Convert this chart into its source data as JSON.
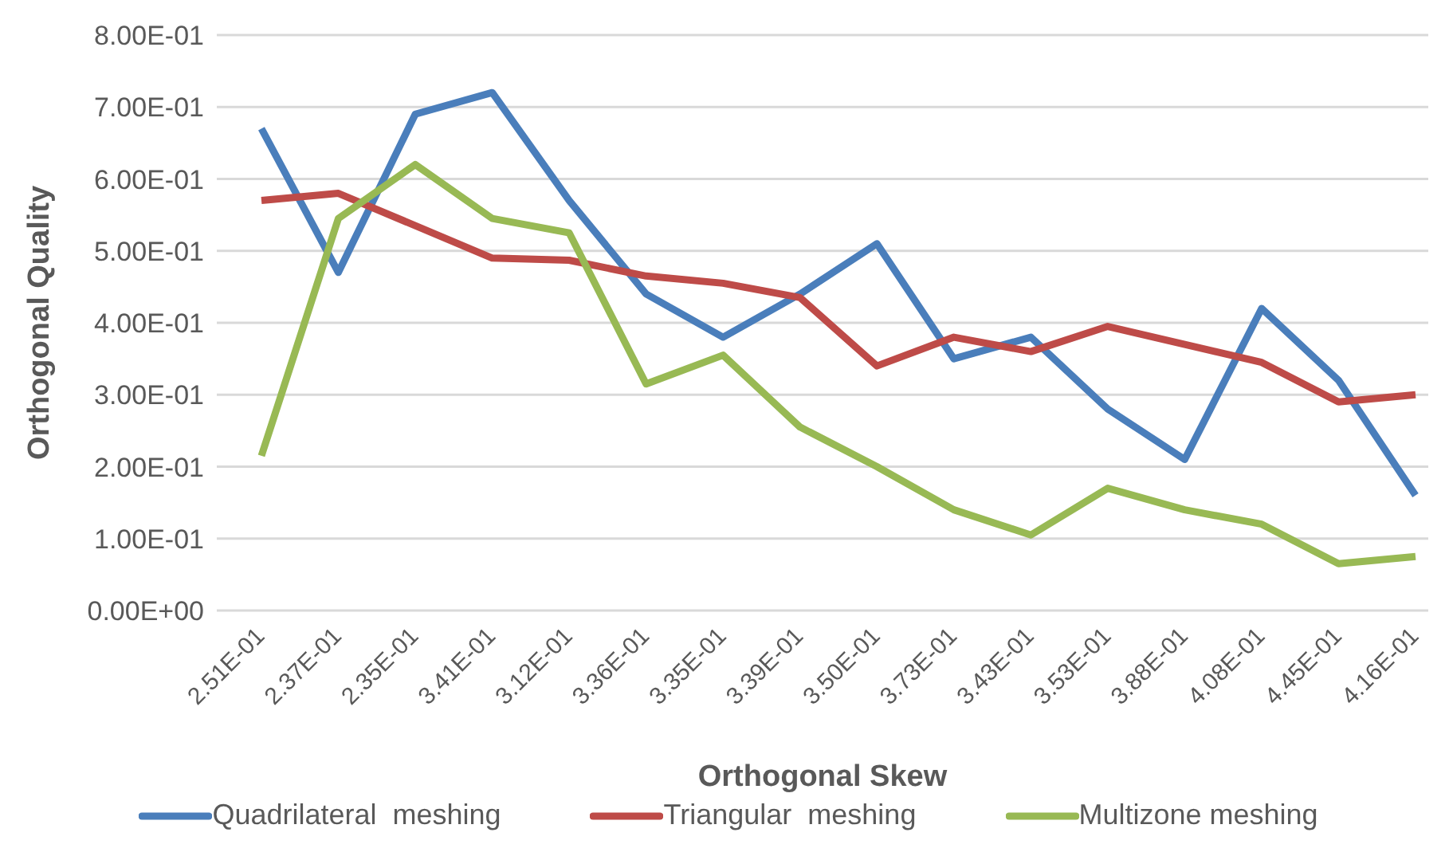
{
  "chart_data": {
    "type": "line",
    "xlabel": "Orthogonal Skew",
    "ylabel": "Orthogonal Quality",
    "categories": [
      "2.51E-01",
      "2.37E-01",
      "2.35E-01",
      "3.41E-01",
      "3.12E-01",
      "3.36E-01",
      "3.35E-01",
      "3.39E-01",
      "3.50E-01",
      "3.73E-01",
      "3.43E-01",
      "3.53E-01",
      "3.88E-01",
      "4.08E-01",
      "4.45E-01",
      "4.16E-01"
    ],
    "series": [
      {
        "name": "Quadrilateral  meshing",
        "color": "#4a7ebb",
        "values": [
          0.67,
          0.47,
          0.69,
          0.72,
          0.57,
          0.44,
          0.38,
          0.44,
          0.51,
          0.35,
          0.38,
          0.28,
          0.21,
          0.42,
          0.32,
          0.16
        ]
      },
      {
        "name": "Triangular  meshing",
        "color": "#be4b48",
        "values": [
          0.57,
          0.58,
          0.535,
          0.49,
          0.487,
          0.465,
          0.455,
          0.435,
          0.34,
          0.38,
          0.36,
          0.395,
          0.37,
          0.345,
          0.29,
          0.3
        ]
      },
      {
        "name": "Multizone meshing",
        "color": "#98b954",
        "values": [
          0.215,
          0.545,
          0.62,
          0.545,
          0.525,
          0.315,
          0.355,
          0.255,
          0.2,
          0.14,
          0.105,
          0.17,
          0.14,
          0.12,
          0.065,
          0.075
        ]
      }
    ],
    "ylim": [
      0,
      0.8
    ],
    "yticks": [
      {
        "value": 0,
        "label": "0.00E+00"
      },
      {
        "value": 0.1,
        "label": "1.00E-01"
      },
      {
        "value": 0.2,
        "label": "2.00E-01"
      },
      {
        "value": 0.3,
        "label": "3.00E-01"
      },
      {
        "value": 0.4,
        "label": "4.00E-01"
      },
      {
        "value": 0.5,
        "label": "5.00E-01"
      },
      {
        "value": 0.6,
        "label": "6.00E-01"
      },
      {
        "value": 0.7,
        "label": "7.00E-01"
      },
      {
        "value": 0.8,
        "label": "8.00E-01"
      }
    ],
    "grid": "y",
    "legend": "bottom",
    "marker": "none",
    "line_style": "solid"
  }
}
